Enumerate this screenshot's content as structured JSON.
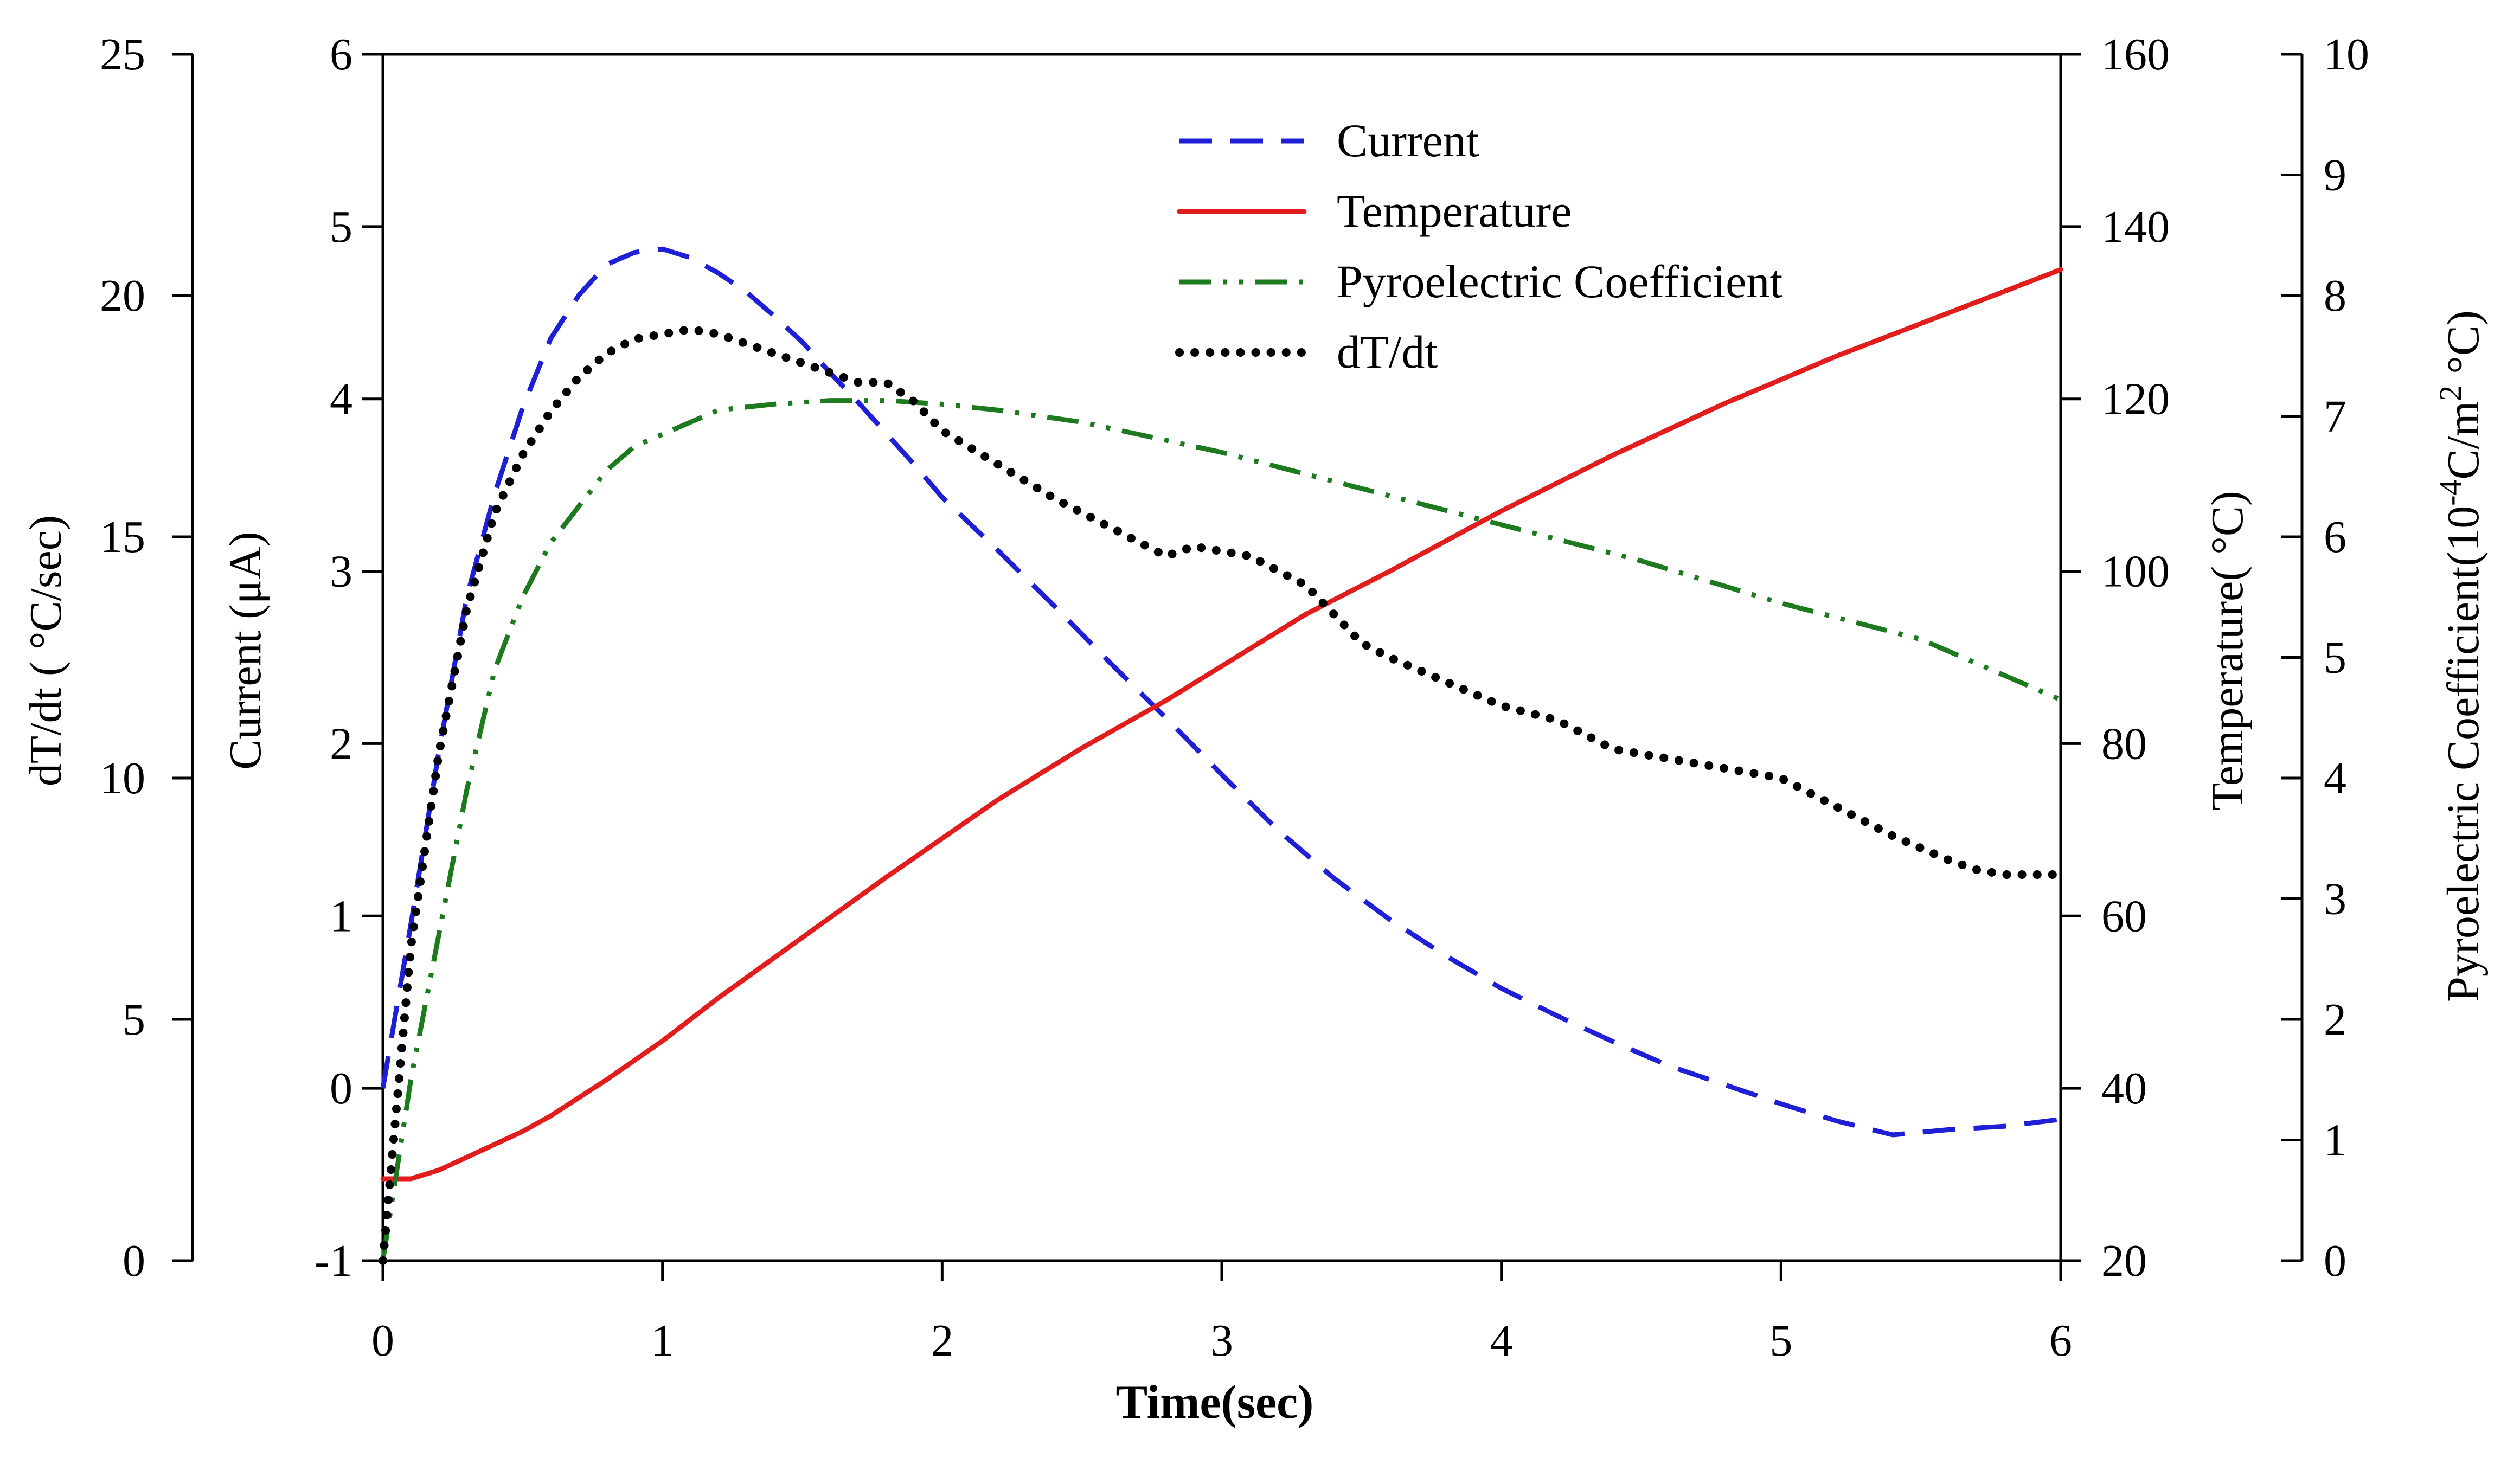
{
  "chart_data": {
    "type": "line",
    "title": "",
    "xlabel": "Time(sec)",
    "xlim": [
      0,
      6
    ],
    "xticks": [
      "0",
      "1",
      "2",
      "3",
      "4",
      "5",
      "6"
    ],
    "grid": false,
    "legend_position": "top-center",
    "axes": {
      "dtdt": {
        "label": "dT/dt ( °C/sec)",
        "range": [
          0,
          25
        ],
        "ticks": [
          "0",
          "5",
          "10",
          "15",
          "20",
          "25"
        ]
      },
      "current": {
        "label": "Current (μA)",
        "range": [
          -1,
          6
        ],
        "ticks": [
          "-1",
          "0",
          "1",
          "2",
          "3",
          "4",
          "5",
          "6"
        ]
      },
      "temperature": {
        "label": "Temperature( °C)",
        "range": [
          20,
          160
        ],
        "ticks": [
          "20",
          "40",
          "60",
          "80",
          "100",
          "120",
          "140",
          "160"
        ]
      },
      "pyro": {
        "label_prefix": "Pyroelectric Coefficient(10",
        "label_exp1": "-4",
        "label_mid": "C/m",
        "label_exp2": "2",
        "label_suffix": " °C)",
        "range": [
          0,
          10
        ],
        "ticks": [
          "0",
          "1",
          "2",
          "3",
          "4",
          "5",
          "6",
          "7",
          "8",
          "9",
          "10"
        ]
      }
    },
    "series": [
      {
        "name": "Current",
        "axis": "current",
        "color": "#1f1fd6",
        "dash": "dashed",
        "x": [
          0,
          0.1,
          0.2,
          0.3,
          0.4,
          0.5,
          0.6,
          0.7,
          0.8,
          0.9,
          1.0,
          1.1,
          1.2,
          1.3,
          1.4,
          1.5,
          1.6,
          1.7,
          1.8,
          1.9,
          2.0,
          2.2,
          2.4,
          2.6,
          2.8,
          3.0,
          3.2,
          3.4,
          3.6,
          3.8,
          4.0,
          4.2,
          4.4,
          4.6,
          4.8,
          5.0,
          5.2,
          5.4,
          5.6,
          5.8,
          6.0
        ],
        "y": [
          0.0,
          0.95,
          1.95,
          2.85,
          3.45,
          3.95,
          4.35,
          4.6,
          4.78,
          4.85,
          4.87,
          4.82,
          4.73,
          4.62,
          4.48,
          4.33,
          4.15,
          3.98,
          3.8,
          3.62,
          3.43,
          3.12,
          2.8,
          2.47,
          2.15,
          1.82,
          1.5,
          1.22,
          0.98,
          0.77,
          0.58,
          0.42,
          0.27,
          0.13,
          0.02,
          -0.09,
          -0.19,
          -0.27,
          -0.24,
          -0.22,
          -0.18
        ]
      },
      {
        "name": "Temperature",
        "axis": "temperature",
        "color": "#e11d1d",
        "dash": "solid",
        "x": [
          0,
          0.1,
          0.2,
          0.3,
          0.4,
          0.5,
          0.6,
          0.8,
          1.0,
          1.2,
          1.5,
          1.8,
          2.0,
          2.2,
          2.5,
          2.8,
          3.0,
          3.3,
          3.6,
          4.0,
          4.4,
          4.8,
          5.2,
          5.6,
          6.0
        ],
        "y": [
          29.5,
          29.5,
          30.5,
          32,
          33.5,
          35,
          36.8,
          41,
          45.5,
          50.5,
          57.5,
          64.5,
          69,
          73.5,
          79.5,
          85,
          89,
          95,
          100,
          107,
          113.5,
          119.5,
          125,
          130,
          135
        ]
      },
      {
        "name": "Pyroelectric Coefficient",
        "axis": "pyro",
        "color": "#1e7a1e",
        "dash": "dashdotdot",
        "x": [
          0,
          0.1,
          0.2,
          0.3,
          0.4,
          0.5,
          0.6,
          0.7,
          0.8,
          0.9,
          1.0,
          1.1,
          1.2,
          1.4,
          1.6,
          1.8,
          2.0,
          2.2,
          2.5,
          2.8,
          3.0,
          3.5,
          4.0,
          4.5,
          5.0,
          5.5,
          6.0
        ],
        "y": [
          0,
          1.5,
          2.7,
          3.9,
          4.9,
          5.5,
          5.95,
          6.25,
          6.55,
          6.75,
          6.85,
          6.95,
          7.05,
          7.1,
          7.13,
          7.13,
          7.1,
          7.05,
          6.95,
          6.8,
          6.7,
          6.4,
          6.1,
          5.8,
          5.45,
          5.15,
          4.65
        ]
      },
      {
        "name": "dT/dt",
        "axis": "dtdt",
        "color": "#000000",
        "dash": "dotted",
        "x": [
          0,
          0.1,
          0.2,
          0.3,
          0.4,
          0.5,
          0.6,
          0.7,
          0.8,
          0.9,
          1.0,
          1.1,
          1.2,
          1.3,
          1.4,
          1.5,
          1.6,
          1.7,
          1.8,
          1.9,
          2.0,
          2.2,
          2.4,
          2.6,
          2.8,
          2.9,
          3.0,
          3.1,
          3.3,
          3.5,
          3.6,
          3.8,
          4.0,
          4.2,
          4.4,
          4.6,
          4.8,
          5.0,
          5.2,
          5.4,
          5.6,
          5.7,
          5.8,
          6.0
        ],
        "y": [
          0,
          6.5,
          10.5,
          13.5,
          15.5,
          16.7,
          17.6,
          18.3,
          18.8,
          19.1,
          19.2,
          19.3,
          19.2,
          19.0,
          18.8,
          18.6,
          18.4,
          18.2,
          18.2,
          17.8,
          17.2,
          16.5,
          15.8,
          15.2,
          14.6,
          14.8,
          14.7,
          14.6,
          14.0,
          12.8,
          12.5,
          12.0,
          11.5,
          11.2,
          10.6,
          10.4,
          10.2,
          10.0,
          9.4,
          8.8,
          8.3,
          8.1,
          8.0,
          8.0
        ]
      }
    ]
  }
}
